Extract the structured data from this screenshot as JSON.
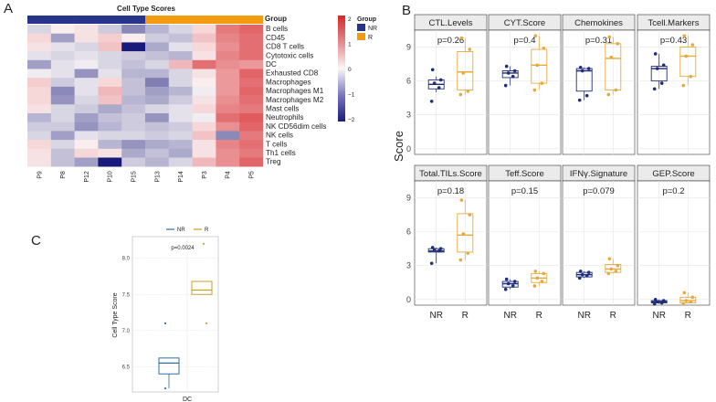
{
  "colors": {
    "nr": "#27348b",
    "r": "#f39c12",
    "nr_dark": "#1f2d7a",
    "r_gold": "#e8a93c",
    "c_nr": "#2e6da4",
    "c_r": "#c9a227",
    "heat_low": "#1a1a7a",
    "heat_mid": "#fbf7f7",
    "heat_high": "#d7262b",
    "strip_bg": "#ebebeb",
    "grid": "#e5e5e5"
  },
  "panel_labels": {
    "a": "A",
    "b": "B",
    "c": "C"
  },
  "heatmap": {
    "title": "Cell Type Scores",
    "group_label": "Group",
    "legend_group_title": "Group",
    "legend_nr": "NR",
    "legend_r": "R",
    "scale_ticks": [
      "2",
      "1",
      "0",
      "−1",
      "−2"
    ],
    "columns": [
      "P9",
      "P8",
      "P12",
      "P10",
      "P15",
      "P13",
      "P14",
      "P3",
      "P4",
      "P5"
    ],
    "groups": [
      "NR",
      "NR",
      "NR",
      "NR",
      "NR",
      "R",
      "R",
      "R",
      "R",
      "R"
    ],
    "rows": [
      "B cells",
      "CD45",
      "CD8 T cells",
      "Cytotoxic cells",
      "DC",
      "Exhausted CD8",
      "Macrophages",
      "Macrophages M1",
      "Macrophages M2",
      "Mast cells",
      "Neutrophils",
      "NK CD56dim cells",
      "NK cells",
      "T cells",
      "Th1 cells",
      "Treg"
    ],
    "values": [
      [
        -0.3,
        0.1,
        0.2,
        -0.4,
        -1.0,
        -0.6,
        -0.3,
        0.3,
        1.2,
        1.4
      ],
      [
        0.3,
        -0.8,
        0.2,
        0.4,
        0.1,
        -0.4,
        -0.5,
        0.5,
        1.1,
        1.3
      ],
      [
        0.2,
        -0.2,
        -0.3,
        0.5,
        -2.0,
        -0.7,
        -0.2,
        0.3,
        1.0,
        1.3
      ],
      [
        -0.2,
        -0.3,
        -0.2,
        -0.3,
        -0.4,
        -0.5,
        -0.6,
        0.2,
        1.1,
        1.3
      ],
      [
        -0.8,
        -0.2,
        -0.1,
        -0.3,
        -0.5,
        -0.3,
        0.6,
        1.3,
        1.0,
        0.9
      ],
      [
        -0.1,
        -0.2,
        -0.9,
        -0.2,
        -0.6,
        -0.6,
        -0.3,
        0.2,
        0.9,
        1.4
      ],
      [
        0.4,
        -0.4,
        -0.2,
        0.3,
        -0.5,
        -1.1,
        -0.3,
        0.1,
        0.9,
        1.3
      ],
      [
        0.3,
        -1.0,
        -0.2,
        0.6,
        -0.5,
        -0.8,
        -0.6,
        -0.1,
        0.9,
        1.4
      ],
      [
        0.3,
        -0.9,
        -0.3,
        0.5,
        -0.6,
        -0.7,
        -0.4,
        0.2,
        1.0,
        1.3
      ],
      [
        0.2,
        -0.3,
        -0.4,
        -0.7,
        -0.5,
        -0.3,
        -0.2,
        0.3,
        1.1,
        1.2
      ],
      [
        -0.6,
        -0.3,
        -0.8,
        -0.5,
        -0.4,
        -0.9,
        -0.2,
        -0.1,
        1.3,
        1.5
      ],
      [
        -0.4,
        -0.4,
        -0.9,
        -0.6,
        -0.4,
        -0.5,
        -0.4,
        0.3,
        1.0,
        1.4
      ],
      [
        -0.3,
        -0.8,
        -0.2,
        -0.3,
        -0.3,
        -0.4,
        -0.3,
        0.5,
        -1.0,
        1.2
      ],
      [
        0.3,
        -0.3,
        0.1,
        -0.6,
        -0.9,
        -0.7,
        -0.6,
        0.2,
        1.1,
        1.3
      ],
      [
        0.2,
        -0.5,
        0.3,
        0.2,
        -0.7,
        -0.5,
        -0.7,
        0.2,
        1.0,
        1.2
      ],
      [
        0.2,
        -0.5,
        -0.8,
        -2.0,
        -0.4,
        -0.6,
        -0.3,
        0.6,
        1.0,
        1.4
      ]
    ]
  },
  "chart_data": [
    {
      "type": "heatmap",
      "title": "Cell Type Scores",
      "columns": [
        "P9",
        "P8",
        "P12",
        "P10",
        "P15",
        "P13",
        "P14",
        "P3",
        "P4",
        "P5"
      ],
      "rows": [
        "B cells",
        "CD45",
        "CD8 T cells",
        "Cytotoxic cells",
        "DC",
        "Exhausted CD8",
        "Macrophages",
        "Macrophages M1",
        "Macrophages M2",
        "Mast cells",
        "Neutrophils",
        "NK CD56dim cells",
        "NK cells",
        "T cells",
        "Th1 cells",
        "Treg"
      ],
      "color_range": [
        -2,
        2
      ]
    },
    {
      "type": "box",
      "ylabel": "Score",
      "ylim": [
        -0.5,
        10.5
      ],
      "yticks": [
        0,
        3,
        6,
        9
      ],
      "categories": [
        "NR",
        "R"
      ],
      "facets": [
        {
          "title": "CTL.Levels",
          "pval": "p=0.26",
          "box": [
            {
              "q1": 5.3,
              "med": 5.7,
              "q3": 6.1,
              "lo": 5.0,
              "hi": 6.4
            },
            {
              "q1": 5.2,
              "med": 6.8,
              "q3": 8.6,
              "lo": 4.8,
              "hi": 9.8
            }
          ],
          "points": [
            [
              4.2,
              5.4,
              5.8,
              6.1,
              7.0
            ],
            [
              4.8,
              5.1,
              6.7,
              8.8,
              9.8
            ]
          ]
        },
        {
          "title": "CYT.Score",
          "pval": "p=0.4",
          "box": [
            {
              "q1": 6.3,
              "med": 6.7,
              "q3": 6.9,
              "lo": 5.6,
              "hi": 7.3
            },
            {
              "q1": 5.8,
              "med": 7.4,
              "q3": 8.8,
              "lo": 5.2,
              "hi": 10.0
            }
          ],
          "points": [
            [
              5.6,
              6.4,
              6.7,
              6.9,
              7.3
            ],
            [
              5.2,
              5.8,
              7.4,
              8.9,
              10.0
            ]
          ]
        },
        {
          "title": "Chemokines",
          "pval": "p=0.31",
          "box": [
            {
              "q1": 5.1,
              "med": 6.9,
              "q3": 7.1,
              "lo": 4.3,
              "hi": 7.2
            },
            {
              "q1": 5.2,
              "med": 8.0,
              "q3": 9.3,
              "lo": 4.8,
              "hi": 9.9
            }
          ],
          "points": [
            [
              4.3,
              4.7,
              6.9,
              7.1,
              7.2
            ],
            [
              4.8,
              5.2,
              8.1,
              9.3,
              9.9
            ]
          ]
        },
        {
          "title": "Tcell.Markers",
          "pval": "p=0.43",
          "box": [
            {
              "q1": 6.0,
              "med": 7.1,
              "q3": 7.3,
              "lo": 5.3,
              "hi": 8.4
            },
            {
              "q1": 6.4,
              "med": 8.2,
              "q3": 9.0,
              "lo": 5.6,
              "hi": 10.0
            }
          ],
          "points": [
            [
              5.3,
              5.8,
              7.1,
              7.4,
              8.4
            ],
            [
              5.6,
              6.4,
              8.2,
              9.2,
              10.0
            ]
          ]
        },
        {
          "title": "Total.TILs.Score",
          "pval": "p=0.18",
          "box": [
            {
              "q1": 4.2,
              "med": 4.3,
              "q3": 4.5,
              "lo": 3.2,
              "hi": 4.6
            },
            {
              "q1": 4.2,
              "med": 5.7,
              "q3": 7.6,
              "lo": 3.5,
              "hi": 8.8
            }
          ],
          "points": [
            [
              3.2,
              4.3,
              4.4,
              4.5,
              4.6
            ],
            [
              3.5,
              4.1,
              5.8,
              7.5,
              8.8
            ]
          ]
        },
        {
          "title": "Teff.Score",
          "pval": "p=0.15",
          "box": [
            {
              "q1": 1.1,
              "med": 1.4,
              "q3": 1.6,
              "lo": 0.9,
              "hi": 1.8
            },
            {
              "q1": 1.5,
              "med": 1.9,
              "q3": 2.3,
              "lo": 1.2,
              "hi": 2.5
            }
          ],
          "points": [
            [
              0.9,
              1.2,
              1.4,
              1.6,
              1.8
            ],
            [
              1.2,
              1.6,
              1.9,
              2.3,
              2.5
            ]
          ]
        },
        {
          "title": "IFNγ.Signature",
          "pval": "p=0.079",
          "box": [
            {
              "q1": 2.0,
              "med": 2.2,
              "q3": 2.4,
              "lo": 1.9,
              "hi": 2.5
            },
            {
              "q1": 2.4,
              "med": 2.7,
              "q3": 3.1,
              "lo": 2.3,
              "hi": 3.6
            }
          ],
          "points": [
            [
              1.9,
              2.1,
              2.2,
              2.4,
              2.5
            ],
            [
              2.3,
              2.5,
              2.7,
              3.0,
              3.6
            ]
          ]
        },
        {
          "title": "GEP.Score",
          "pval": "p=0.2",
          "box": [
            {
              "q1": -0.3,
              "med": -0.2,
              "q3": -0.1,
              "lo": -0.4,
              "hi": 0.0
            },
            {
              "q1": -0.3,
              "med": -0.1,
              "q3": 0.2,
              "lo": -0.4,
              "hi": 0.6
            }
          ],
          "points": [
            [
              -0.4,
              -0.3,
              -0.2,
              -0.1,
              0.0
            ],
            [
              -0.4,
              -0.2,
              -0.1,
              0.2,
              0.6
            ]
          ]
        }
      ]
    },
    {
      "type": "box",
      "ylabel": "Cell Type Score",
      "xlabel_tick": "DC",
      "legend": [
        "NR",
        "R"
      ],
      "pval": "p=0.0024",
      "ylim": [
        6.15,
        8.3
      ],
      "yticks": [
        6.5,
        7.0,
        7.5,
        8.0
      ],
      "ytick_labels": [
        "6.5",
        "7.0",
        "7.5",
        "8.0"
      ],
      "box": [
        {
          "q1": 6.4,
          "med": 6.55,
          "q3": 6.62,
          "lo": 6.2,
          "hi": 6.62
        },
        {
          "q1": 7.5,
          "med": 7.56,
          "q3": 7.68,
          "lo": 7.5,
          "hi": 7.68
        }
      ],
      "outliers": [
        [
          7.1,
          6.2
        ],
        [
          8.2,
          7.1
        ]
      ]
    }
  ]
}
